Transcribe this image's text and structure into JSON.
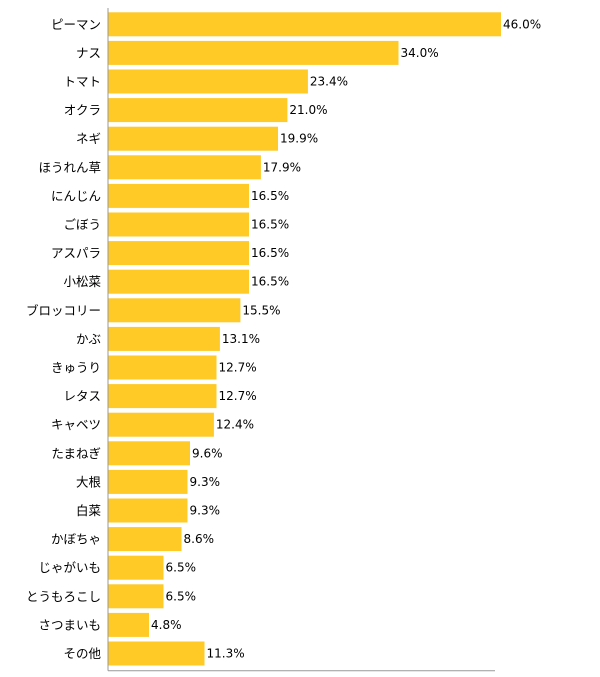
{
  "chart_data": {
    "type": "bar",
    "orientation": "horizontal",
    "title": "",
    "xlabel": "",
    "ylabel": "",
    "xlim": [
      0,
      50
    ],
    "grid": false,
    "legend": "none",
    "value_suffix": "%",
    "colors": {
      "bar": "#FFC926",
      "axis": "#999999"
    },
    "categories": [
      "ピーマン",
      "ナス",
      "トマト",
      "オクラ",
      "ネギ",
      "ほうれん草",
      "にんじん",
      "ごぼう",
      "アスパラ",
      "小松菜",
      "ブロッコリー",
      "かぶ",
      "きゅうり",
      "レタス",
      "キャベツ",
      "たまねぎ",
      "大根",
      "白菜",
      "かぼちゃ",
      "じゃがいも",
      "とうもろこし",
      "さつまいも",
      "その他"
    ],
    "values": [
      46.0,
      34.0,
      23.4,
      21.0,
      19.9,
      17.9,
      16.5,
      16.5,
      16.5,
      16.5,
      15.5,
      13.1,
      12.7,
      12.7,
      12.4,
      9.6,
      9.3,
      9.3,
      8.6,
      6.5,
      6.5,
      4.8,
      11.3
    ],
    "value_labels": [
      "46.0%",
      "34.0%",
      "23.4%",
      "21.0%",
      "19.9%",
      "17.9%",
      "16.5%",
      "16.5%",
      "16.5%",
      "16.5%",
      "15.5%",
      "13.1%",
      "12.7%",
      "12.7%",
      "12.4%",
      "9.6%",
      "9.3%",
      "9.3%",
      "8.6%",
      "6.5%",
      "6.5%",
      "4.8%",
      "11.3%"
    ]
  }
}
